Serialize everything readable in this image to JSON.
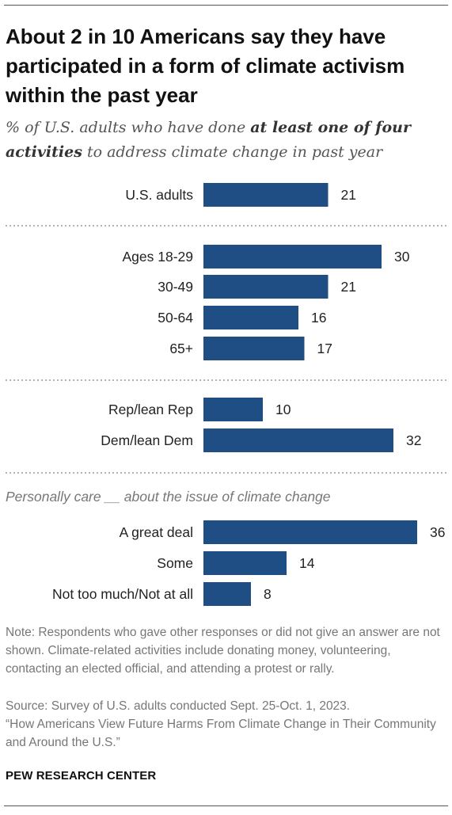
{
  "header": {
    "title": "About 2 in 10 Americans say they have participated in a form of climate activism within the past year",
    "subtitle_pre": "% of U.S. adults who have done ",
    "subtitle_bold": "at least one of four activities",
    "subtitle_post": " to address climate change in past year"
  },
  "chart_data": {
    "type": "bar",
    "orientation": "horizontal",
    "bar_color": "#1f4e85",
    "groups": [
      {
        "label": "",
        "categories": [
          "U.S. adults"
        ],
        "values": [
          21
        ]
      },
      {
        "label": "",
        "categories": [
          "Ages 18-29",
          "30-49",
          "50-64",
          "65+"
        ],
        "values": [
          30,
          21,
          16,
          17
        ]
      },
      {
        "label": "",
        "categories": [
          "Rep/lean Rep",
          "Dem/lean Dem"
        ],
        "values": [
          10,
          32
        ]
      },
      {
        "label": "Personally care __ about the issue of climate change",
        "categories": [
          "A great deal",
          "Some",
          "Not too much/Not at all"
        ],
        "values": [
          36,
          14,
          8
        ]
      }
    ],
    "xlim": [
      0,
      36
    ]
  },
  "footer": {
    "note": "Note: Respondents who gave other responses or did not give an answer are not shown. Climate-related activities include donating money, volunteering, contacting an elected official, and attending a protest or rally.",
    "source_line1": "Source: Survey of U.S. adults conducted Sept. 25-Oct. 1, 2023.",
    "source_line2": "“How Americans View Future Harms From Climate Change in Their Community and Around the U.S.”",
    "org": "PEW RESEARCH CENTER"
  }
}
